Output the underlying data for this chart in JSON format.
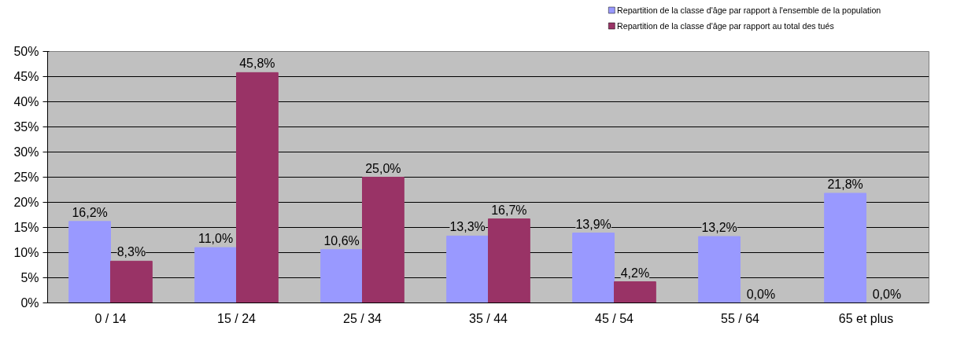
{
  "chart_data": {
    "type": "bar",
    "categories": [
      "0 / 14",
      "15 / 24",
      "25 / 34",
      "35 / 44",
      "45 / 54",
      "55 / 64",
      "65 et plus"
    ],
    "series": [
      {
        "name": "Repartition de la classe d'âge par rapport à l'ensemble de la population",
        "color": "#9999ff",
        "values": [
          16.2,
          11.0,
          10.6,
          13.3,
          13.9,
          13.2,
          21.8
        ],
        "value_labels": [
          "16,2%",
          "11,0%",
          "10,6%",
          "13,3%",
          "13,9%",
          "13,2%",
          "21,8%"
        ]
      },
      {
        "name": "Repartition de la classe d'âge par rapport au total des tués",
        "color": "#993366",
        "values": [
          8.3,
          45.8,
          25.0,
          16.7,
          4.2,
          0.0,
          0.0
        ],
        "value_labels": [
          "8,3%",
          "45,8%",
          "25,0%",
          "16,7%",
          "4,2%",
          "0,0%",
          "0,0%"
        ]
      }
    ],
    "ylim": [
      0,
      50
    ],
    "yticks": [
      {
        "value": 0,
        "label": "0%"
      },
      {
        "value": 5,
        "label": "5%"
      },
      {
        "value": 10,
        "label": "10%"
      },
      {
        "value": 15,
        "label": "15%"
      },
      {
        "value": 20,
        "label": "20%"
      },
      {
        "value": 25,
        "label": "25%"
      },
      {
        "value": 30,
        "label": "30%"
      },
      {
        "value": 35,
        "label": "35%"
      },
      {
        "value": 40,
        "label": "40%"
      },
      {
        "value": 45,
        "label": "45%"
      },
      {
        "value": 50,
        "label": "50%"
      }
    ],
    "grid": "y",
    "legend": "top right"
  }
}
